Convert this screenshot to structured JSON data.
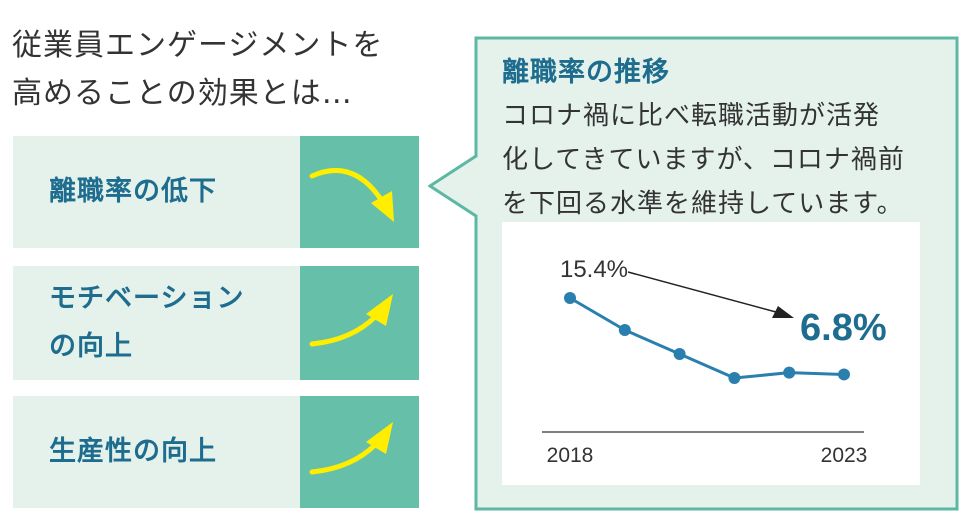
{
  "headline": {
    "line1": "従業員エンゲージメントを",
    "line2": "高めることの効果とは…"
  },
  "effects": [
    {
      "lines": [
        "離職率の低下"
      ],
      "trend": "down"
    },
    {
      "lines": [
        "モチベーション",
        "の向上"
      ],
      "trend": "up"
    },
    {
      "lines": [
        "生産性の向上"
      ],
      "trend": "up"
    }
  ],
  "callout": {
    "title": "離職率の推移",
    "text_lines": [
      "コロナ禍に比べ転職活動が活発",
      "化してきていますが、コロナ禍前",
      "を下回る水準を維持しています。"
    ]
  },
  "colors": {
    "accent_teal": "#66c0a9",
    "light_green": "#e5f2ec",
    "frame_border": "#5cb8a3",
    "title_blue": "#1e6d8f",
    "line_blue": "#2a7fae",
    "arrow_yellow": "#ffee00"
  },
  "icons": {
    "down": "curved-down-arrow-icon",
    "up": "curved-up-arrow-icon"
  },
  "chart_data": {
    "type": "line",
    "x": [
      2018,
      2019,
      2020,
      2021,
      2022,
      2023
    ],
    "series": [
      {
        "values": [
          15.4,
          11.8,
          9.1,
          6.4,
          7.0,
          6.8
        ]
      }
    ],
    "x_tick_labels": [
      "2018",
      "2023"
    ],
    "annotations": {
      "start_label": "15.4%",
      "end_label": "6.8%"
    },
    "ylim": [
      0,
      16
    ],
    "grid": false,
    "legend": "none"
  }
}
